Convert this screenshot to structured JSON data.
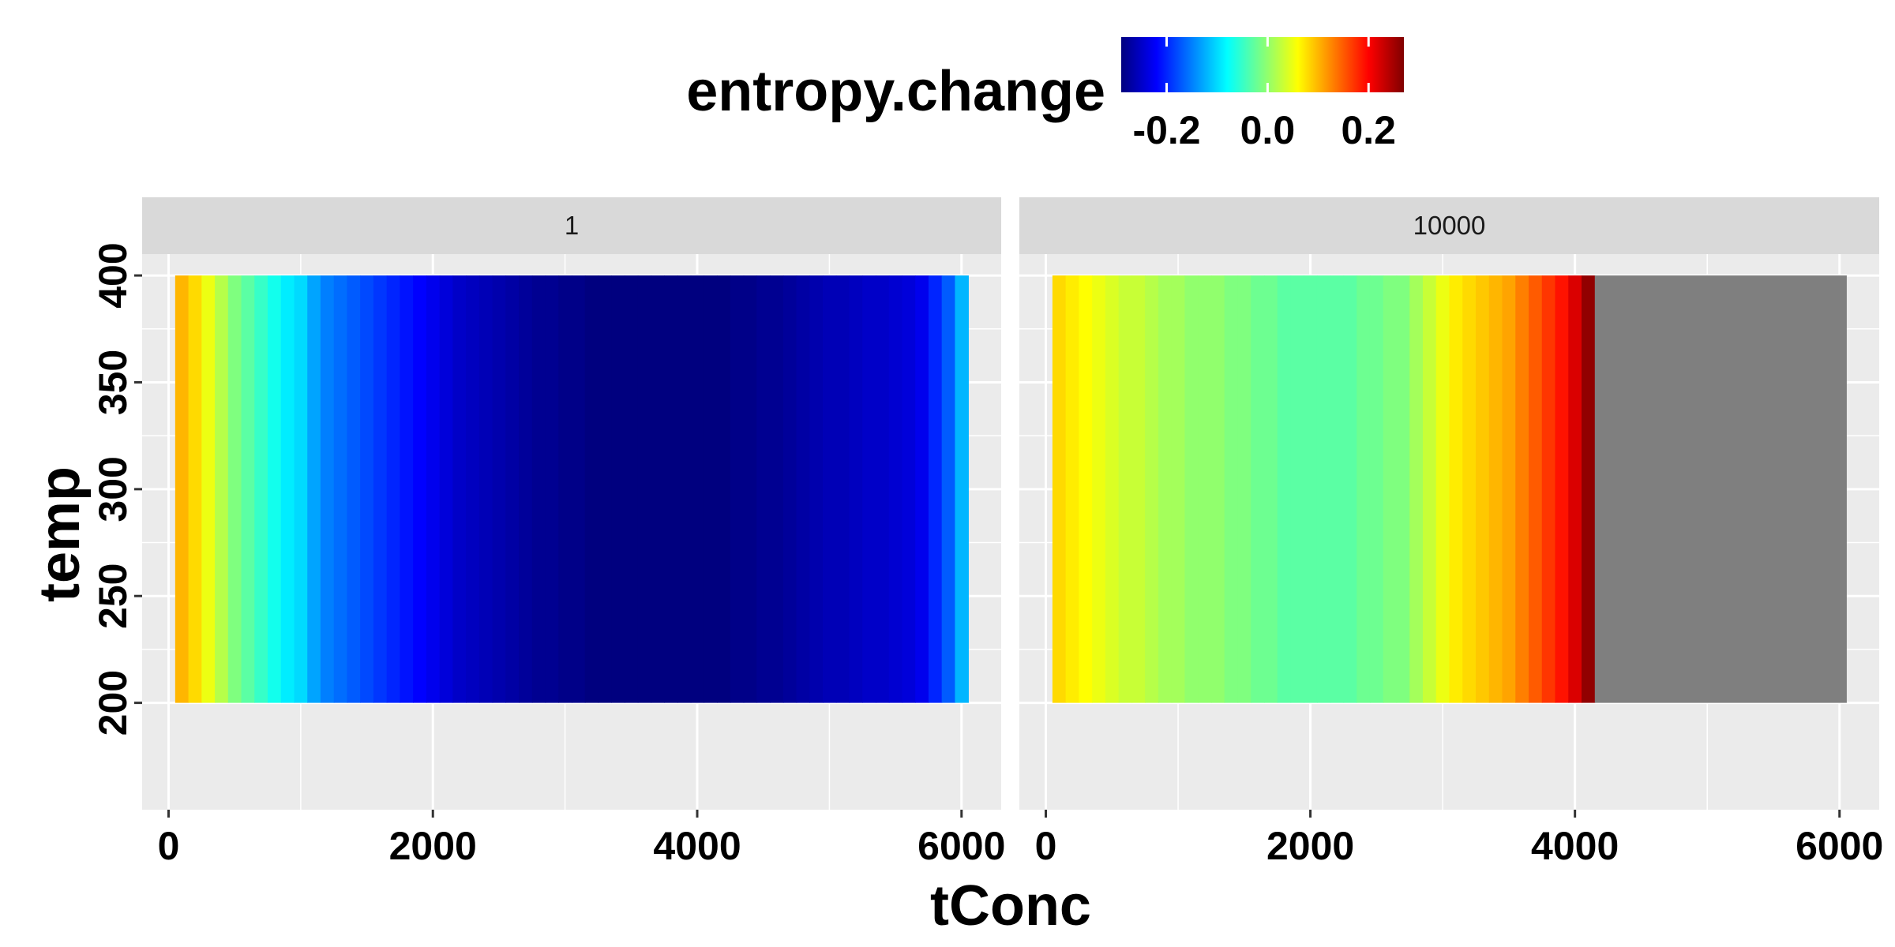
{
  "chart_data": {
    "type": "heatmap",
    "title": "",
    "xlabel": "tConc",
    "ylabel": "temp",
    "xlim": [
      -200,
      6300
    ],
    "ylim": [
      150,
      410
    ],
    "y_range": [
      200,
      400
    ],
    "x_range": [
      50,
      6050
    ],
    "xticks": [
      0,
      2000,
      4000,
      6000
    ],
    "yticks": [
      200,
      250,
      300,
      350,
      400
    ],
    "xtick_labels": [
      "0",
      "2000",
      "4000",
      "6000"
    ],
    "ytick_labels": [
      "200",
      "250",
      "300",
      "350",
      "400"
    ],
    "grid": true,
    "legend": {
      "title": "entropy.change",
      "position": "top",
      "limits": [
        -0.29,
        0.27
      ],
      "breaks": [
        -0.2,
        0.0,
        0.2
      ],
      "break_labels": [
        "-0.2",
        "0.0",
        "0.2"
      ],
      "colors": [
        "#00007F",
        "#0000FF",
        "#007FFF",
        "#00FFFF",
        "#7FFF7F",
        "#FFFF00",
        "#FF7F00",
        "#FF0000",
        "#7F0000"
      ],
      "na_color": "#7F7F7F"
    },
    "facets": [
      {
        "label": "1",
        "bin_edges": [
          50,
          150,
          250,
          350,
          450,
          550,
          650,
          750,
          850,
          950,
          1050,
          1150,
          1250,
          1350,
          1450,
          1550,
          1650,
          1750,
          1850,
          1950,
          2050,
          2150,
          2250,
          2350,
          2450,
          2550,
          2650,
          2750,
          2850,
          2950,
          3050,
          3150,
          3250,
          3350,
          3450,
          3550,
          3650,
          3750,
          3850,
          3950,
          4050,
          4150,
          4250,
          4350,
          4450,
          4550,
          4650,
          4750,
          4850,
          4950,
          5050,
          5150,
          5250,
          5350,
          5450,
          5550,
          5650,
          5750,
          5850,
          5950,
          6050
        ],
        "values": [
          0.1,
          0.08,
          0.05,
          0.02,
          -0.01,
          -0.03,
          -0.05,
          -0.07,
          -0.09,
          -0.1,
          -0.13,
          -0.15,
          -0.16,
          -0.17,
          -0.18,
          -0.19,
          -0.2,
          -0.21,
          -0.22,
          -0.23,
          -0.24,
          -0.25,
          -0.255,
          -0.26,
          -0.265,
          -0.27,
          -0.275,
          -0.28,
          -0.28,
          -0.285,
          -0.285,
          -0.29,
          -0.29,
          -0.29,
          -0.29,
          -0.29,
          -0.29,
          -0.29,
          -0.29,
          -0.29,
          -0.29,
          -0.29,
          -0.285,
          -0.285,
          -0.28,
          -0.28,
          -0.275,
          -0.27,
          -0.265,
          -0.26,
          -0.26,
          -0.255,
          -0.25,
          -0.25,
          -0.245,
          -0.24,
          -0.23,
          -0.2,
          -0.17,
          -0.12
        ]
      },
      {
        "label": "10000",
        "bin_edges": [
          50,
          150,
          250,
          350,
          450,
          550,
          650,
          750,
          850,
          950,
          1050,
          1150,
          1250,
          1350,
          1450,
          1550,
          1650,
          1750,
          1850,
          1950,
          2050,
          2150,
          2250,
          2350,
          2450,
          2550,
          2650,
          2750,
          2850,
          2950,
          3050,
          3150,
          3250,
          3350,
          3450,
          3550,
          3650,
          3750,
          3850,
          3950,
          4050,
          4150,
          6050
        ],
        "values": [
          0.08,
          0.07,
          0.06,
          0.05,
          0.04,
          0.03,
          0.03,
          0.02,
          0.01,
          0.01,
          0.0,
          0.0,
          0.0,
          -0.01,
          -0.01,
          -0.02,
          -0.02,
          -0.03,
          -0.03,
          -0.03,
          -0.03,
          -0.03,
          -0.03,
          -0.02,
          -0.02,
          -0.01,
          -0.01,
          0.01,
          0.03,
          0.05,
          0.07,
          0.08,
          0.09,
          0.1,
          0.11,
          0.13,
          0.15,
          0.17,
          0.19,
          0.22,
          0.26,
          null
        ]
      }
    ]
  }
}
